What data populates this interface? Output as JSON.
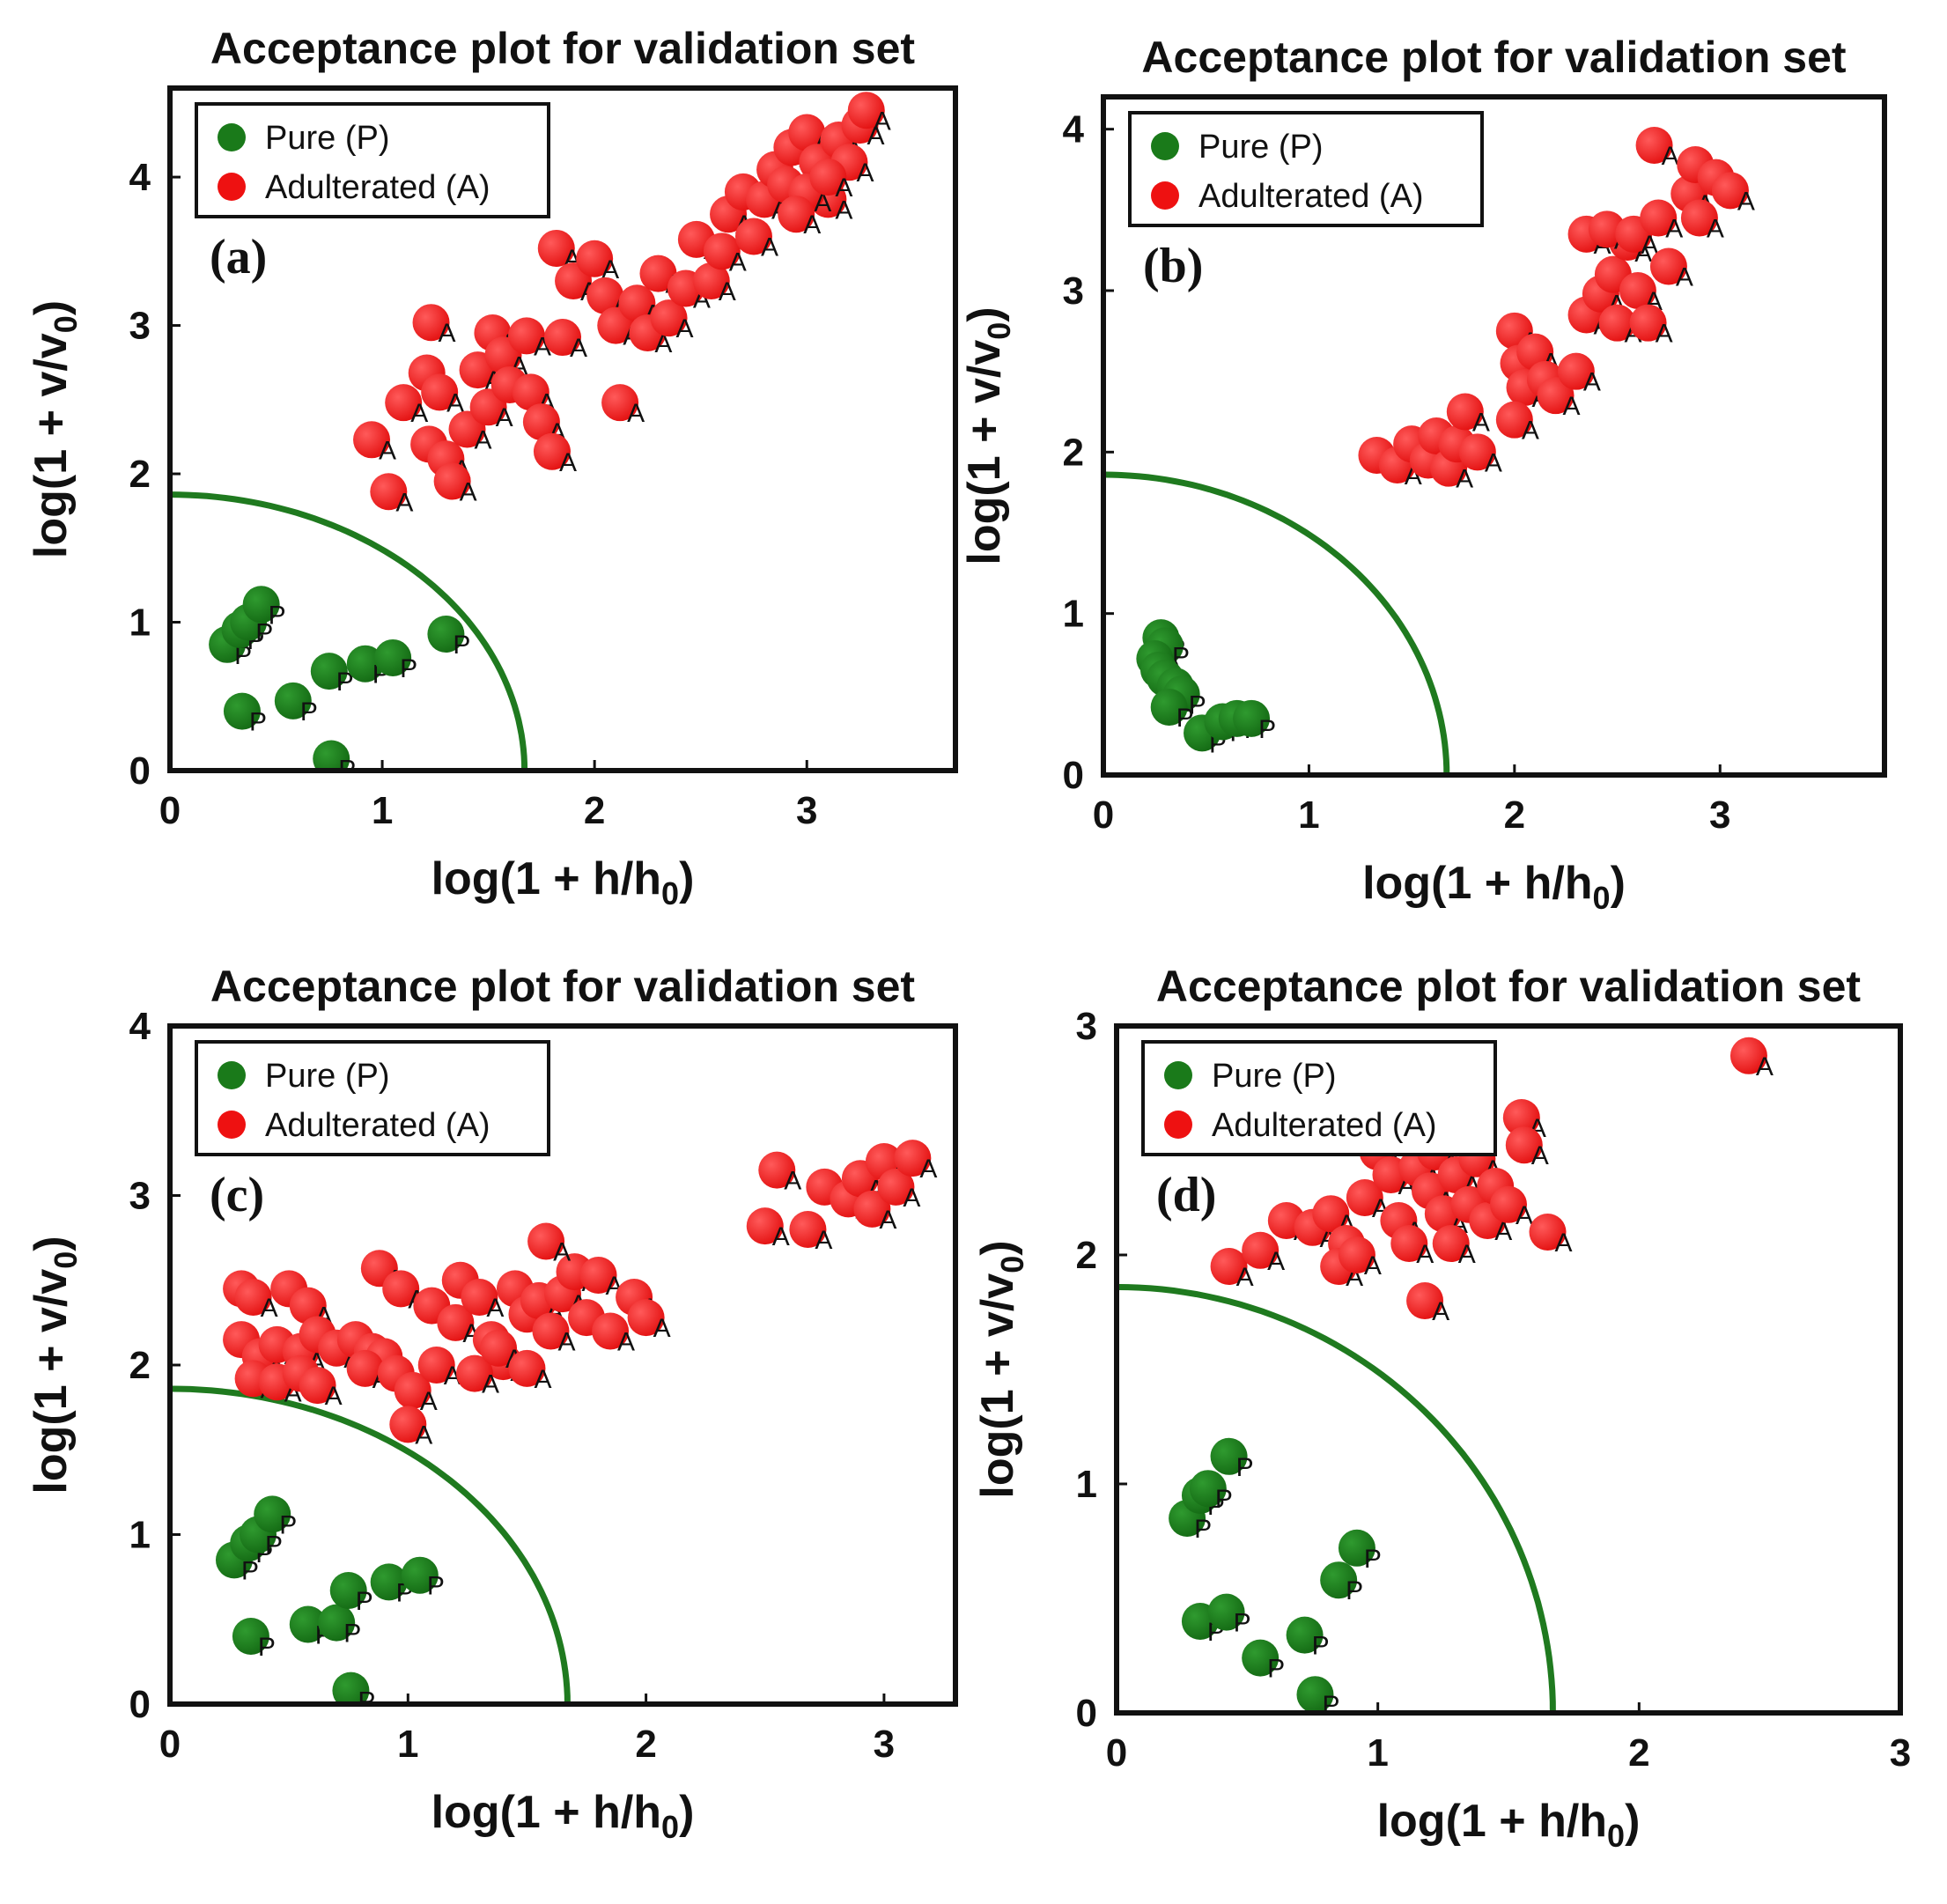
{
  "figure": {
    "panels_count": 4
  },
  "colors": {
    "pure": "#1a7a1a",
    "adulterated": "#ee1111",
    "boundary": "#1f7a1f",
    "axis": "#111111"
  },
  "chart_data": [
    {
      "type": "scatter",
      "panel_label": "(a)",
      "title": "Acceptance plot for validation set",
      "xlabel": "log(1 + h/h₀)",
      "ylabel": "log(1 + v/v₀)",
      "xlim": [
        0,
        3.7
      ],
      "ylim": [
        0,
        4.6
      ],
      "xticks": [
        0,
        1,
        2,
        3
      ],
      "yticks": [
        0,
        1,
        2,
        3,
        4
      ],
      "legend": [
        {
          "name": "Pure (P)",
          "marker": "P"
        },
        {
          "name": "Adulterated (A)",
          "marker": "A"
        }
      ],
      "boundary": {
        "x_intercept": 1.67,
        "y_intercept": 1.86
      },
      "series": [
        {
          "name": "Pure (P)",
          "points": [
            [
              0.27,
              0.85
            ],
            [
              0.33,
              0.95
            ],
            [
              0.37,
              1.0
            ],
            [
              0.43,
              1.12
            ],
            [
              0.34,
              0.4
            ],
            [
              0.58,
              0.47
            ],
            [
              0.75,
              0.67
            ],
            [
              0.92,
              0.72
            ],
            [
              1.05,
              0.76
            ],
            [
              1.3,
              0.92
            ],
            [
              0.76,
              0.08
            ]
          ]
        },
        {
          "name": "Adulterated (A)",
          "points": [
            [
              0.95,
              2.23
            ],
            [
              1.03,
              1.88
            ],
            [
              1.1,
              2.48
            ],
            [
              1.23,
              3.02
            ],
            [
              1.21,
              2.68
            ],
            [
              1.27,
              2.55
            ],
            [
              1.22,
              2.2
            ],
            [
              1.3,
              2.1
            ],
            [
              1.33,
              1.95
            ],
            [
              1.4,
              2.3
            ],
            [
              1.45,
              2.7
            ],
            [
              1.52,
              2.95
            ],
            [
              1.57,
              2.8
            ],
            [
              1.68,
              2.93
            ],
            [
              1.5,
              2.45
            ],
            [
              1.6,
              2.6
            ],
            [
              1.7,
              2.55
            ],
            [
              1.75,
              2.35
            ],
            [
              1.8,
              2.15
            ],
            [
              1.85,
              2.92
            ],
            [
              1.82,
              3.52
            ],
            [
              1.9,
              3.3
            ],
            [
              2.0,
              3.45
            ],
            [
              2.05,
              3.2
            ],
            [
              2.1,
              3.0
            ],
            [
              2.12,
              2.48
            ],
            [
              2.2,
              3.15
            ],
            [
              2.25,
              2.95
            ],
            [
              2.35,
              3.05
            ],
            [
              2.3,
              3.35
            ],
            [
              2.43,
              3.25
            ],
            [
              2.48,
              3.58
            ],
            [
              2.55,
              3.3
            ],
            [
              2.6,
              3.5
            ],
            [
              2.63,
              3.75
            ],
            [
              2.7,
              3.9
            ],
            [
              2.75,
              3.6
            ],
            [
              2.8,
              3.85
            ],
            [
              2.85,
              4.05
            ],
            [
              2.9,
              3.95
            ],
            [
              2.93,
              4.2
            ],
            [
              3.0,
              4.3
            ],
            [
              3.05,
              4.1
            ],
            [
              3.1,
              3.85
            ],
            [
              3.15,
              4.25
            ],
            [
              3.2,
              4.1
            ],
            [
              3.25,
              4.35
            ],
            [
              3.28,
              4.45
            ],
            [
              3.0,
              3.9
            ],
            [
              2.95,
              3.75
            ],
            [
              3.1,
              4.0
            ]
          ]
        }
      ]
    },
    {
      "type": "scatter",
      "panel_label": "(b)",
      "title": "Acceptance plot for validation set",
      "xlabel": "log(1 + h/h₀)",
      "ylabel": "log(1 + v/v₀)",
      "xlim": [
        0,
        3.8
      ],
      "ylim": [
        0,
        4.2
      ],
      "xticks": [
        0,
        1,
        2,
        3
      ],
      "yticks": [
        0,
        1,
        2,
        3,
        4
      ],
      "legend": [
        {
          "name": "Pure (P)",
          "marker": "P"
        },
        {
          "name": "Adulterated (A)",
          "marker": "A"
        }
      ],
      "boundary": {
        "x_intercept": 1.67,
        "y_intercept": 1.86
      },
      "series": [
        {
          "name": "Pure (P)",
          "points": [
            [
              0.28,
              0.85
            ],
            [
              0.3,
              0.8
            ],
            [
              0.25,
              0.72
            ],
            [
              0.27,
              0.65
            ],
            [
              0.3,
              0.6
            ],
            [
              0.35,
              0.55
            ],
            [
              0.38,
              0.5
            ],
            [
              0.32,
              0.42
            ],
            [
              0.48,
              0.26
            ],
            [
              0.58,
              0.33
            ],
            [
              0.65,
              0.35
            ],
            [
              0.72,
              0.35
            ]
          ]
        },
        {
          "name": "Adulterated (A)",
          "points": [
            [
              1.33,
              1.98
            ],
            [
              1.43,
              1.92
            ],
            [
              1.5,
              2.05
            ],
            [
              1.58,
              1.95
            ],
            [
              1.62,
              2.1
            ],
            [
              1.68,
              1.9
            ],
            [
              1.72,
              2.05
            ],
            [
              1.76,
              2.25
            ],
            [
              1.82,
              2.0
            ],
            [
              2.0,
              2.75
            ],
            [
              2.02,
              2.55
            ],
            [
              2.05,
              2.4
            ],
            [
              2.0,
              2.2
            ],
            [
              2.1,
              2.62
            ],
            [
              2.15,
              2.45
            ],
            [
              2.2,
              2.35
            ],
            [
              2.3,
              2.5
            ],
            [
              2.35,
              2.85
            ],
            [
              2.42,
              2.98
            ],
            [
              2.48,
              3.1
            ],
            [
              2.55,
              3.3
            ],
            [
              2.6,
              3.0
            ],
            [
              2.5,
              2.8
            ],
            [
              2.35,
              3.35
            ],
            [
              2.45,
              3.38
            ],
            [
              2.58,
              3.35
            ],
            [
              2.7,
              3.45
            ],
            [
              2.75,
              3.15
            ],
            [
              2.85,
              3.6
            ],
            [
              2.9,
              3.45
            ],
            [
              2.68,
              3.9
            ],
            [
              2.88,
              3.78
            ],
            [
              2.98,
              3.7
            ],
            [
              3.05,
              3.62
            ],
            [
              2.65,
              2.8
            ]
          ]
        }
      ]
    },
    {
      "type": "scatter",
      "panel_label": "(c)",
      "title": "Acceptance plot for validation set",
      "xlabel": "log(1 + h/h₀)",
      "ylabel": "log(1 + v/v₀)",
      "xlim": [
        0,
        3.3
      ],
      "ylim": [
        0,
        4
      ],
      "xticks": [
        0,
        1,
        2,
        3
      ],
      "yticks": [
        0,
        1,
        2,
        3,
        4
      ],
      "legend": [
        {
          "name": "Pure (P)",
          "marker": "P"
        },
        {
          "name": "Adulterated (A)",
          "marker": "A"
        }
      ],
      "boundary": {
        "x_intercept": 1.67,
        "y_intercept": 1.86
      },
      "series": [
        {
          "name": "Pure (P)",
          "points": [
            [
              0.27,
              0.85
            ],
            [
              0.33,
              0.95
            ],
            [
              0.37,
              1.0
            ],
            [
              0.43,
              1.12
            ],
            [
              0.34,
              0.4
            ],
            [
              0.58,
              0.47
            ],
            [
              0.7,
              0.48
            ],
            [
              0.75,
              0.67
            ],
            [
              0.92,
              0.72
            ],
            [
              1.05,
              0.76
            ],
            [
              0.76,
              0.08
            ]
          ]
        },
        {
          "name": "Adulterated (A)",
          "points": [
            [
              0.3,
              2.45
            ],
            [
              0.35,
              2.4
            ],
            [
              0.5,
              2.45
            ],
            [
              0.58,
              2.35
            ],
            [
              0.3,
              2.15
            ],
            [
              0.38,
              2.05
            ],
            [
              0.45,
              2.12
            ],
            [
              0.55,
              2.08
            ],
            [
              0.62,
              2.18
            ],
            [
              0.7,
              2.1
            ],
            [
              0.78,
              2.15
            ],
            [
              0.85,
              2.08
            ],
            [
              0.9,
              2.05
            ],
            [
              0.35,
              1.92
            ],
            [
              0.45,
              1.9
            ],
            [
              0.55,
              1.95
            ],
            [
              0.62,
              1.88
            ],
            [
              0.82,
              1.98
            ],
            [
              0.95,
              1.95
            ],
            [
              1.02,
              1.85
            ],
            [
              0.88,
              2.57
            ],
            [
              0.97,
              2.45
            ],
            [
              1.1,
              2.35
            ],
            [
              1.2,
              2.25
            ],
            [
              1.22,
              2.5
            ],
            [
              1.3,
              2.4
            ],
            [
              1.35,
              2.15
            ],
            [
              1.4,
              2.02
            ],
            [
              1.45,
              2.45
            ],
            [
              1.5,
              2.3
            ],
            [
              1.55,
              2.38
            ],
            [
              1.6,
              2.2
            ],
            [
              1.65,
              2.42
            ],
            [
              1.7,
              2.55
            ],
            [
              1.75,
              2.28
            ],
            [
              1.8,
              2.53
            ],
            [
              1.85,
              2.2
            ],
            [
              1.95,
              2.4
            ],
            [
              2.0,
              2.28
            ],
            [
              1.58,
              2.73
            ],
            [
              1.12,
              2.0
            ],
            [
              1.28,
              1.95
            ],
            [
              1.38,
              2.1
            ],
            [
              1.5,
              1.98
            ],
            [
              1.0,
              1.65
            ],
            [
              2.5,
              2.82
            ],
            [
              2.55,
              3.15
            ],
            [
              2.68,
              2.8
            ],
            [
              2.75,
              3.05
            ],
            [
              2.85,
              2.98
            ],
            [
              2.9,
              3.1
            ],
            [
              2.95,
              2.92
            ],
            [
              3.0,
              3.2
            ],
            [
              3.05,
              3.05
            ],
            [
              3.12,
              3.22
            ]
          ]
        }
      ]
    },
    {
      "type": "scatter",
      "panel_label": "(d)",
      "title": "Acceptance plot for validation set",
      "xlabel": "log(1 + h/h₀)",
      "ylabel": "log(1 + v/v₀)",
      "xlim": [
        0,
        3
      ],
      "ylim": [
        0,
        3
      ],
      "xticks": [
        0,
        1,
        2,
        3
      ],
      "yticks": [
        0,
        1,
        2,
        3
      ],
      "legend": [
        {
          "name": "Pure (P)",
          "marker": "P"
        },
        {
          "name": "Adulterated (A)",
          "marker": "A"
        }
      ],
      "boundary": {
        "x_intercept": 1.67,
        "y_intercept": 1.86
      },
      "series": [
        {
          "name": "Pure (P)",
          "points": [
            [
              0.27,
              0.85
            ],
            [
              0.32,
              0.95
            ],
            [
              0.35,
              0.98
            ],
            [
              0.43,
              1.12
            ],
            [
              0.32,
              0.4
            ],
            [
              0.42,
              0.44
            ],
            [
              0.55,
              0.24
            ],
            [
              0.72,
              0.34
            ],
            [
              0.76,
              0.08
            ],
            [
              0.85,
              0.58
            ],
            [
              0.92,
              0.72
            ]
          ]
        },
        {
          "name": "Adulterated (A)",
          "points": [
            [
              0.43,
              1.95
            ],
            [
              0.55,
              2.02
            ],
            [
              0.65,
              2.15
            ],
            [
              0.75,
              2.12
            ],
            [
              0.82,
              2.18
            ],
            [
              0.88,
              2.05
            ],
            [
              0.85,
              1.95
            ],
            [
              0.92,
              2.0
            ],
            [
              0.95,
              2.25
            ],
            [
              1.0,
              2.45
            ],
            [
              1.05,
              2.35
            ],
            [
              1.08,
              2.15
            ],
            [
              1.12,
              2.05
            ],
            [
              1.15,
              2.38
            ],
            [
              1.2,
              2.28
            ],
            [
              1.22,
              2.45
            ],
            [
              1.25,
              2.18
            ],
            [
              1.28,
              2.05
            ],
            [
              1.3,
              2.35
            ],
            [
              1.35,
              2.22
            ],
            [
              1.38,
              2.42
            ],
            [
              1.42,
              2.15
            ],
            [
              1.45,
              2.3
            ],
            [
              1.5,
              2.22
            ],
            [
              1.55,
              2.6
            ],
            [
              1.56,
              2.48
            ],
            [
              1.65,
              2.1
            ],
            [
              1.18,
              1.8
            ],
            [
              2.42,
              2.87
            ]
          ]
        }
      ]
    }
  ]
}
